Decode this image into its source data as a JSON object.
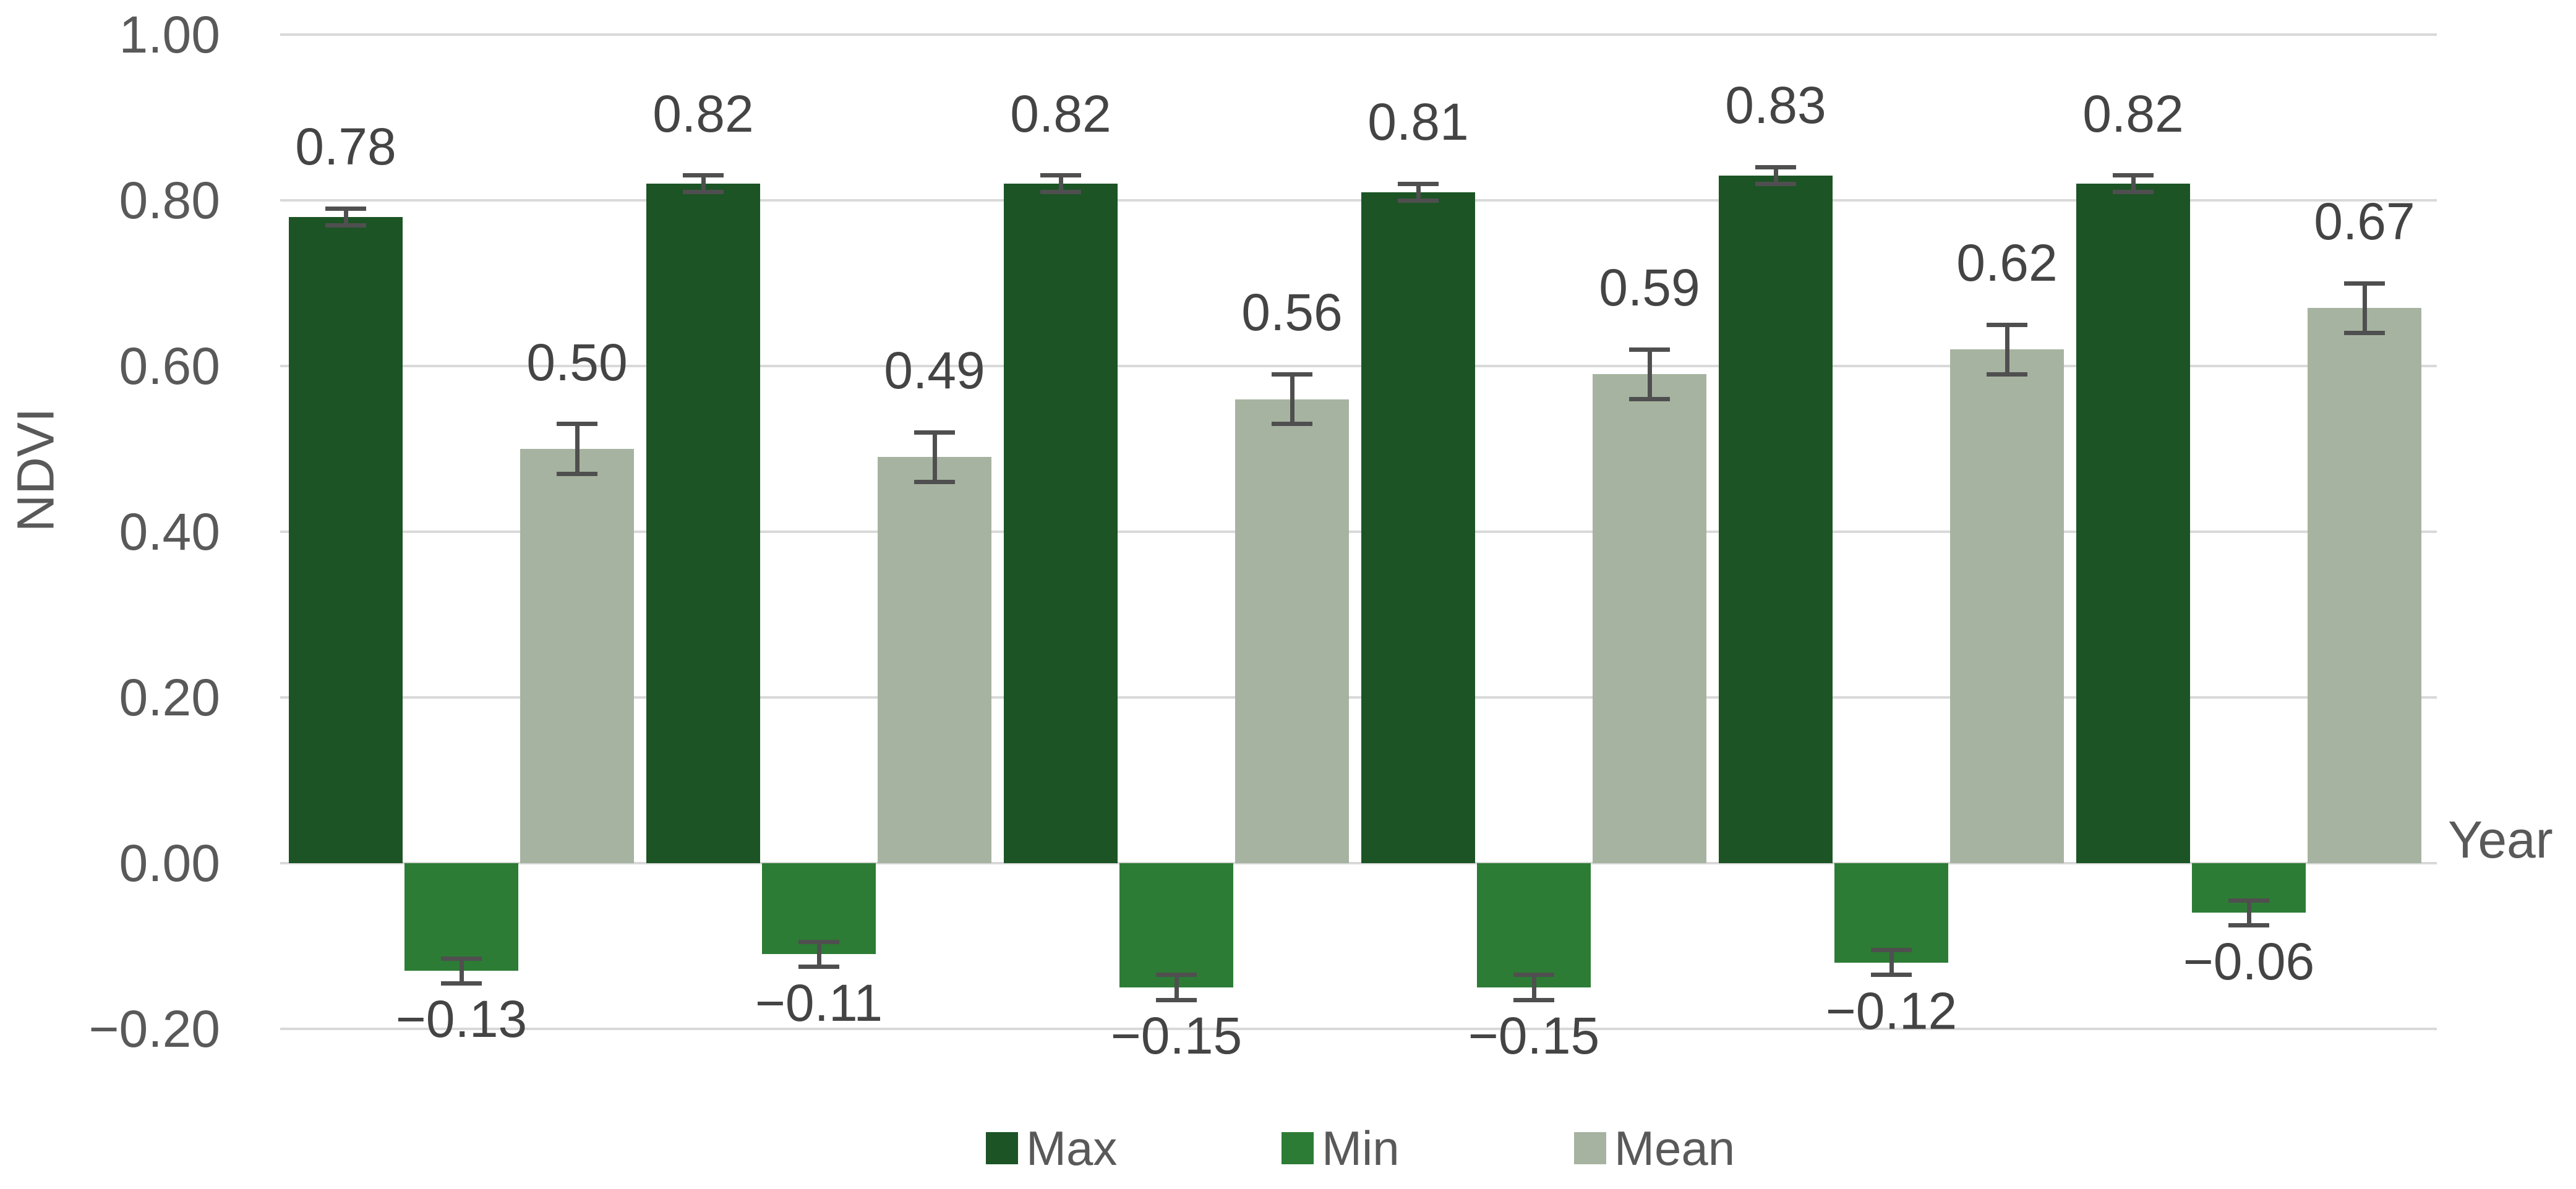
{
  "chart_data": {
    "type": "bar",
    "title": "",
    "xlabel": "Year",
    "ylabel": "NDVI",
    "ylim": [
      -0.2,
      1.0
    ],
    "grid": true,
    "legend_position": "bottom",
    "categories": [
      "",
      "",
      "",
      "",
      "",
      ""
    ],
    "yticks": [
      {
        "value": 1.0,
        "label": "1.00"
      },
      {
        "value": 0.8,
        "label": "0.80"
      },
      {
        "value": 0.6,
        "label": "0.60"
      },
      {
        "value": 0.4,
        "label": "0.40"
      },
      {
        "value": 0.2,
        "label": "0.20"
      },
      {
        "value": 0.0,
        "label": "0.00"
      },
      {
        "value": -0.2,
        "label": "−0.20"
      }
    ],
    "series": [
      {
        "name": "Max",
        "color": "#1c5425",
        "values": [
          0.78,
          0.82,
          0.82,
          0.81,
          0.83,
          0.82
        ],
        "labels": [
          "0.78",
          "0.82",
          "0.82",
          "0.81",
          "0.83",
          "0.82"
        ],
        "error": 0.01
      },
      {
        "name": "Min",
        "color": "#2d7c35",
        "values": [
          -0.13,
          -0.11,
          -0.15,
          -0.15,
          -0.12,
          -0.06
        ],
        "labels": [
          "−0.13",
          "−0.11",
          "−0.15",
          "−0.15",
          "−0.12",
          "−0.06"
        ],
        "error": 0.015
      },
      {
        "name": "Mean",
        "color": "#a6b3a0",
        "values": [
          0.5,
          0.49,
          0.56,
          0.59,
          0.62,
          0.67
        ],
        "labels": [
          "0.50",
          "0.49",
          "0.56",
          "0.59",
          "0.62",
          "0.67"
        ],
        "error": 0.03
      }
    ],
    "error_bar_color": "#4f4f4f",
    "gridline_color": "#d9d9d9",
    "axis_text_color": "#595959",
    "legend": {
      "items": [
        {
          "label": "Max",
          "color": "#1c5425"
        },
        {
          "label": "Min",
          "color": "#2d7c35"
        },
        {
          "label": "Mean",
          "color": "#a6b3a0"
        }
      ]
    }
  }
}
